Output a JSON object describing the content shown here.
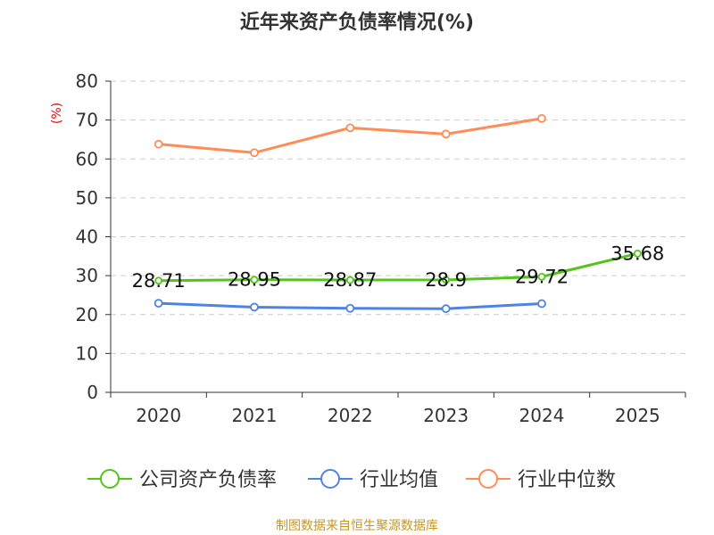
{
  "chart_data": {
    "type": "line",
    "title": "近年来资产负债率情况(%)",
    "ylabel": "(%)",
    "categories": [
      "2020",
      "2021",
      "2022",
      "2023",
      "2024",
      "2025"
    ],
    "ylim": [
      0,
      80
    ],
    "yticks": [
      0,
      10,
      20,
      30,
      40,
      50,
      60,
      70,
      80
    ],
    "grid": true,
    "legend_position": "bottom",
    "series": [
      {
        "name": "公司资产负债率",
        "color": "#52c41a",
        "values": [
          28.71,
          28.95,
          28.87,
          28.9,
          29.72,
          35.68
        ],
        "labels": [
          "28.71",
          "28.95",
          "28.87",
          "28.9",
          "29.72",
          "35.68"
        ]
      },
      {
        "name": "行业均值",
        "color": "#4e83e4",
        "values": [
          22.9,
          21.9,
          21.6,
          21.5,
          22.8,
          null
        ]
      },
      {
        "name": "行业中位数",
        "color": "#ff8c55",
        "values": [
          63.8,
          61.6,
          68.0,
          66.4,
          70.4,
          null
        ]
      }
    ],
    "source": "制图数据来自恒生聚源数据库"
  }
}
